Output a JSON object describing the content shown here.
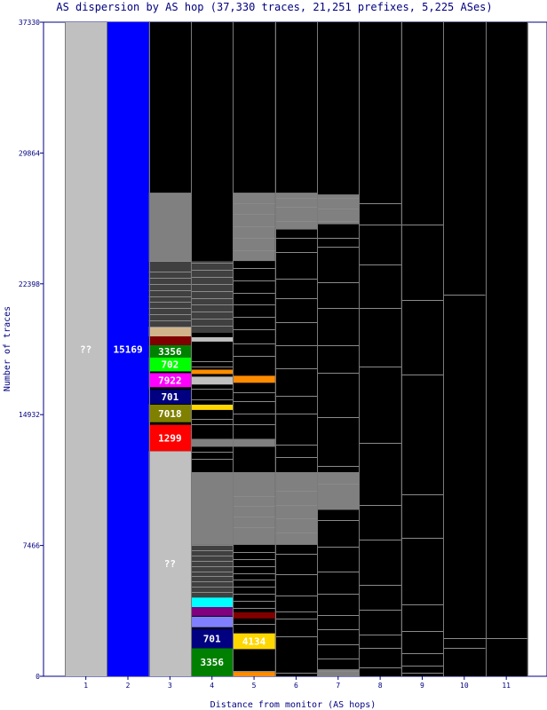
{
  "chart_data": {
    "type": "bar",
    "title": "AS dispersion by AS hop (37,330 traces, 21,251 prefixes, 5,225 ASes)",
    "xlabel": "Distance from monitor (AS hops)",
    "ylabel": "Number of traces",
    "ylim": [
      0,
      37330
    ],
    "yticks": [
      "0",
      "7466",
      "14932",
      "22398",
      "29864",
      "37330"
    ],
    "categories": [
      "1",
      "2",
      "3",
      "4",
      "5",
      "6",
      "7",
      "8",
      "9",
      "10",
      "11"
    ],
    "colors": {
      "unknown": "#c0c0c0",
      "other_as": "#000000",
      "minor_as": "#808080",
      "AS15169": "#0000ff",
      "AS3356": "#008000",
      "AS702": "#00ff00",
      "AS7922": "#ff00ff",
      "AS701": "#000080",
      "AS7018": "#808000",
      "AS1299": "#ff0000",
      "AS4134": "#ffd700"
    },
    "segments": [
      {
        "hop": "1",
        "label": "??",
        "color": "#c0c0c0",
        "from": 0,
        "to": 37330
      },
      {
        "hop": "2",
        "label": "15169",
        "color": "#0000ff",
        "from": 0,
        "to": 37330
      },
      {
        "hop": "3",
        "label": "??",
        "color": "#c0c0c0",
        "from": 0,
        "to": 12850
      },
      {
        "hop": "3",
        "label": "1299",
        "color": "#ff0000",
        "from": 12850,
        "to": 14350
      },
      {
        "hop": "3",
        "label": "7018",
        "color": "#808000",
        "from": 14500,
        "to": 15500
      },
      {
        "hop": "3",
        "label": "701",
        "color": "#000080",
        "from": 15550,
        "to": 16350
      },
      {
        "hop": "3",
        "label": "7922",
        "color": "#ff00ff",
        "from": 16500,
        "to": 17300
      },
      {
        "hop": "3",
        "label": "702",
        "color": "#00ff00",
        "from": 17400,
        "to": 18200
      },
      {
        "hop": "3",
        "label": "3356",
        "color": "#008000",
        "from": 18200,
        "to": 18900
      },
      {
        "hop": "3",
        "label": "",
        "color": "#800000",
        "from": 18900,
        "to": 19400
      },
      {
        "hop": "3",
        "label": "",
        "color": "#d2b48c",
        "from": 19400,
        "to": 19950
      },
      {
        "hop": "3",
        "label": "",
        "color": "#404040",
        "from": 19950,
        "to": 23700
      },
      {
        "hop": "3",
        "label": "",
        "color": "#808080",
        "from": 23700,
        "to": 27600
      },
      {
        "hop": "4",
        "label": "3356",
        "color": "#008000",
        "from": 0,
        "to": 1600
      },
      {
        "hop": "4",
        "label": "701",
        "color": "#000080",
        "from": 1600,
        "to": 2700
      },
      {
        "hop": "4",
        "label": "",
        "color": "#8080ff",
        "from": 2800,
        "to": 3400
      },
      {
        "hop": "4",
        "label": "",
        "color": "#800080",
        "from": 3450,
        "to": 3950
      },
      {
        "hop": "4",
        "label": "",
        "color": "#00ffff",
        "from": 3950,
        "to": 4500
      },
      {
        "hop": "4",
        "label": "",
        "color": "#404040",
        "from": 4500,
        "to": 7500
      },
      {
        "hop": "4",
        "label": "",
        "color": "#808080",
        "from": 7500,
        "to": 11650
      },
      {
        "hop": "4",
        "label": "",
        "color": "#808080",
        "from": 13100,
        "to": 13550
      },
      {
        "hop": "4",
        "label": "",
        "color": "#ffd700",
        "from": 15200,
        "to": 15500
      },
      {
        "hop": "4",
        "label": "",
        "color": "#c0c0c0",
        "from": 16650,
        "to": 17100
      },
      {
        "hop": "4",
        "label": "",
        "color": "#ff8c00",
        "from": 17250,
        "to": 17500
      },
      {
        "hop": "4",
        "label": "",
        "color": "#c0c0c0",
        "from": 19100,
        "to": 19350
      },
      {
        "hop": "4",
        "label": "",
        "color": "#404040",
        "from": 19600,
        "to": 23700
      },
      {
        "hop": "5",
        "label": "4134",
        "color": "#ffd700",
        "from": 1550,
        "to": 2450
      },
      {
        "hop": "5",
        "label": "",
        "color": "#ff8c00",
        "from": 0,
        "to": 250
      },
      {
        "hop": "5",
        "label": "",
        "color": "#800000",
        "from": 3300,
        "to": 3650
      },
      {
        "hop": "5",
        "label": "",
        "color": "#808080",
        "from": 7500,
        "to": 11650
      },
      {
        "hop": "5",
        "label": "",
        "color": "#808080",
        "from": 13100,
        "to": 13550
      },
      {
        "hop": "5",
        "label": "",
        "color": "#ff8c00",
        "from": 16750,
        "to": 17150
      },
      {
        "hop": "5",
        "label": "",
        "color": "#808080",
        "from": 23700,
        "to": 27600
      },
      {
        "hop": "6",
        "label": "",
        "color": "#808080",
        "from": 7500,
        "to": 11650
      },
      {
        "hop": "6",
        "label": "",
        "color": "#808080",
        "from": 25500,
        "to": 27600
      },
      {
        "hop": "7",
        "label": "",
        "color": "#808080",
        "from": 9500,
        "to": 11650
      },
      {
        "hop": "7",
        "label": "",
        "color": "#808080",
        "from": 25800,
        "to": 27500
      },
      {
        "hop": "7",
        "label": "",
        "color": "#808080",
        "from": 0,
        "to": 400
      }
    ],
    "dividers": {
      "3": [
        19950,
        20300,
        20650,
        21000,
        21350,
        21700,
        22050,
        22400,
        22750,
        23100,
        23700
      ],
      "4": [
        4800,
        5100,
        5400,
        5700,
        6000,
        6300,
        6600,
        6900,
        7200,
        7500,
        20000,
        20400,
        20800,
        21200,
        21600,
        22000,
        22400,
        22800,
        23200,
        23600,
        18000,
        17700,
        16400,
        15800,
        14700,
        14400,
        12800,
        12400
      ],
      "5": [
        300,
        3000,
        3900,
        4300,
        4700,
        5100,
        5500,
        5900,
        6300,
        6700,
        7100,
        8500,
        9100,
        9700,
        10300,
        14400,
        15000,
        15700,
        16200,
        18300,
        19000,
        19800,
        20500,
        21200,
        21900,
        22600,
        23300,
        24300,
        25000,
        25700,
        26400,
        27000
      ],
      "6": [
        200,
        2300,
        3300,
        3700,
        4600,
        5800,
        7000,
        8200,
        9000,
        9800,
        10600,
        12500,
        13200,
        15000,
        16000,
        17600,
        18900,
        20200,
        21600,
        22700,
        24200,
        25000,
        26000,
        26800,
        27300
      ],
      "7": [
        300,
        1000,
        1800,
        2700,
        3500,
        4700,
        6000,
        7400,
        8900,
        11000,
        12000,
        14800,
        17300,
        18900,
        21000,
        22500,
        24500,
        25000,
        26000,
        26700,
        27300
      ],
      "8": [
        500,
        1600,
        2400,
        3800,
        5200,
        7800,
        9800,
        13300,
        17700,
        21000,
        23500,
        25800,
        27000
      ],
      "9": [
        200,
        600,
        1300,
        2600,
        4100,
        7900,
        10400,
        17200,
        21500,
        25800
      ],
      "10": [
        1600,
        2200,
        21800
      ],
      "11": [
        2200
      ]
    }
  }
}
